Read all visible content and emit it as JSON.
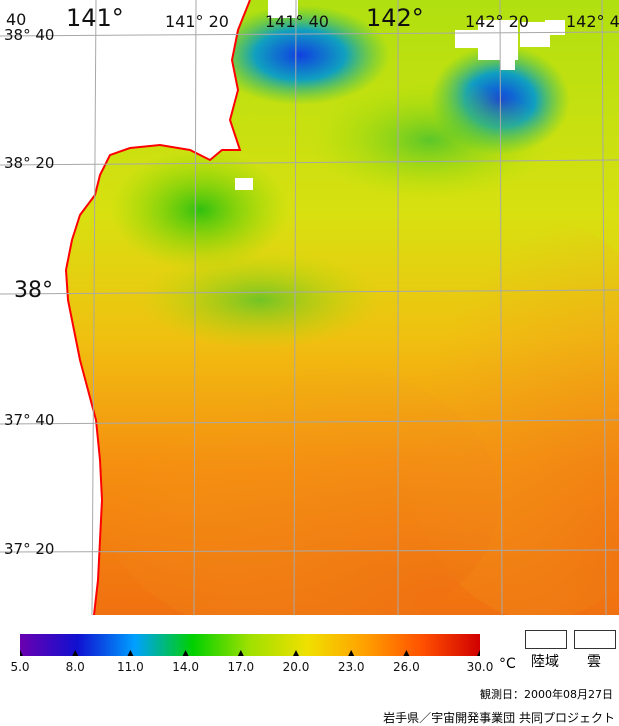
{
  "map": {
    "lon_labels_major": [
      "141°",
      "142°"
    ],
    "lon_labels_minor": [
      "40",
      "141° 20",
      "141° 40",
      "142° 20",
      "142° 4"
    ],
    "lat_labels_major": [
      "38°"
    ],
    "lat_labels_minor": [
      "38° 40",
      "38° 20",
      "37° 40",
      "37° 20"
    ],
    "coast_color": "#ff0000",
    "grid_color": "#a8a8a8"
  },
  "colorbar": {
    "ticks": [
      "5.0",
      "8.0",
      "11.0",
      "14.0",
      "17.0",
      "20.0",
      "23.0",
      "26.0",
      "30.0"
    ],
    "unit": "°C",
    "colors": [
      "#6a00b0",
      "#1010d0",
      "#00a0ff",
      "#00d000",
      "#a0e000",
      "#f0e000",
      "#ffa000",
      "#ff5000",
      "#d00000"
    ]
  },
  "legend": {
    "land_label": "陸域",
    "cloud_label": "雲"
  },
  "footer": {
    "observation_date": "観測日：2000年08月27日",
    "credit": "岩手県／宇宙開発事業団  共同プロジェクト"
  }
}
